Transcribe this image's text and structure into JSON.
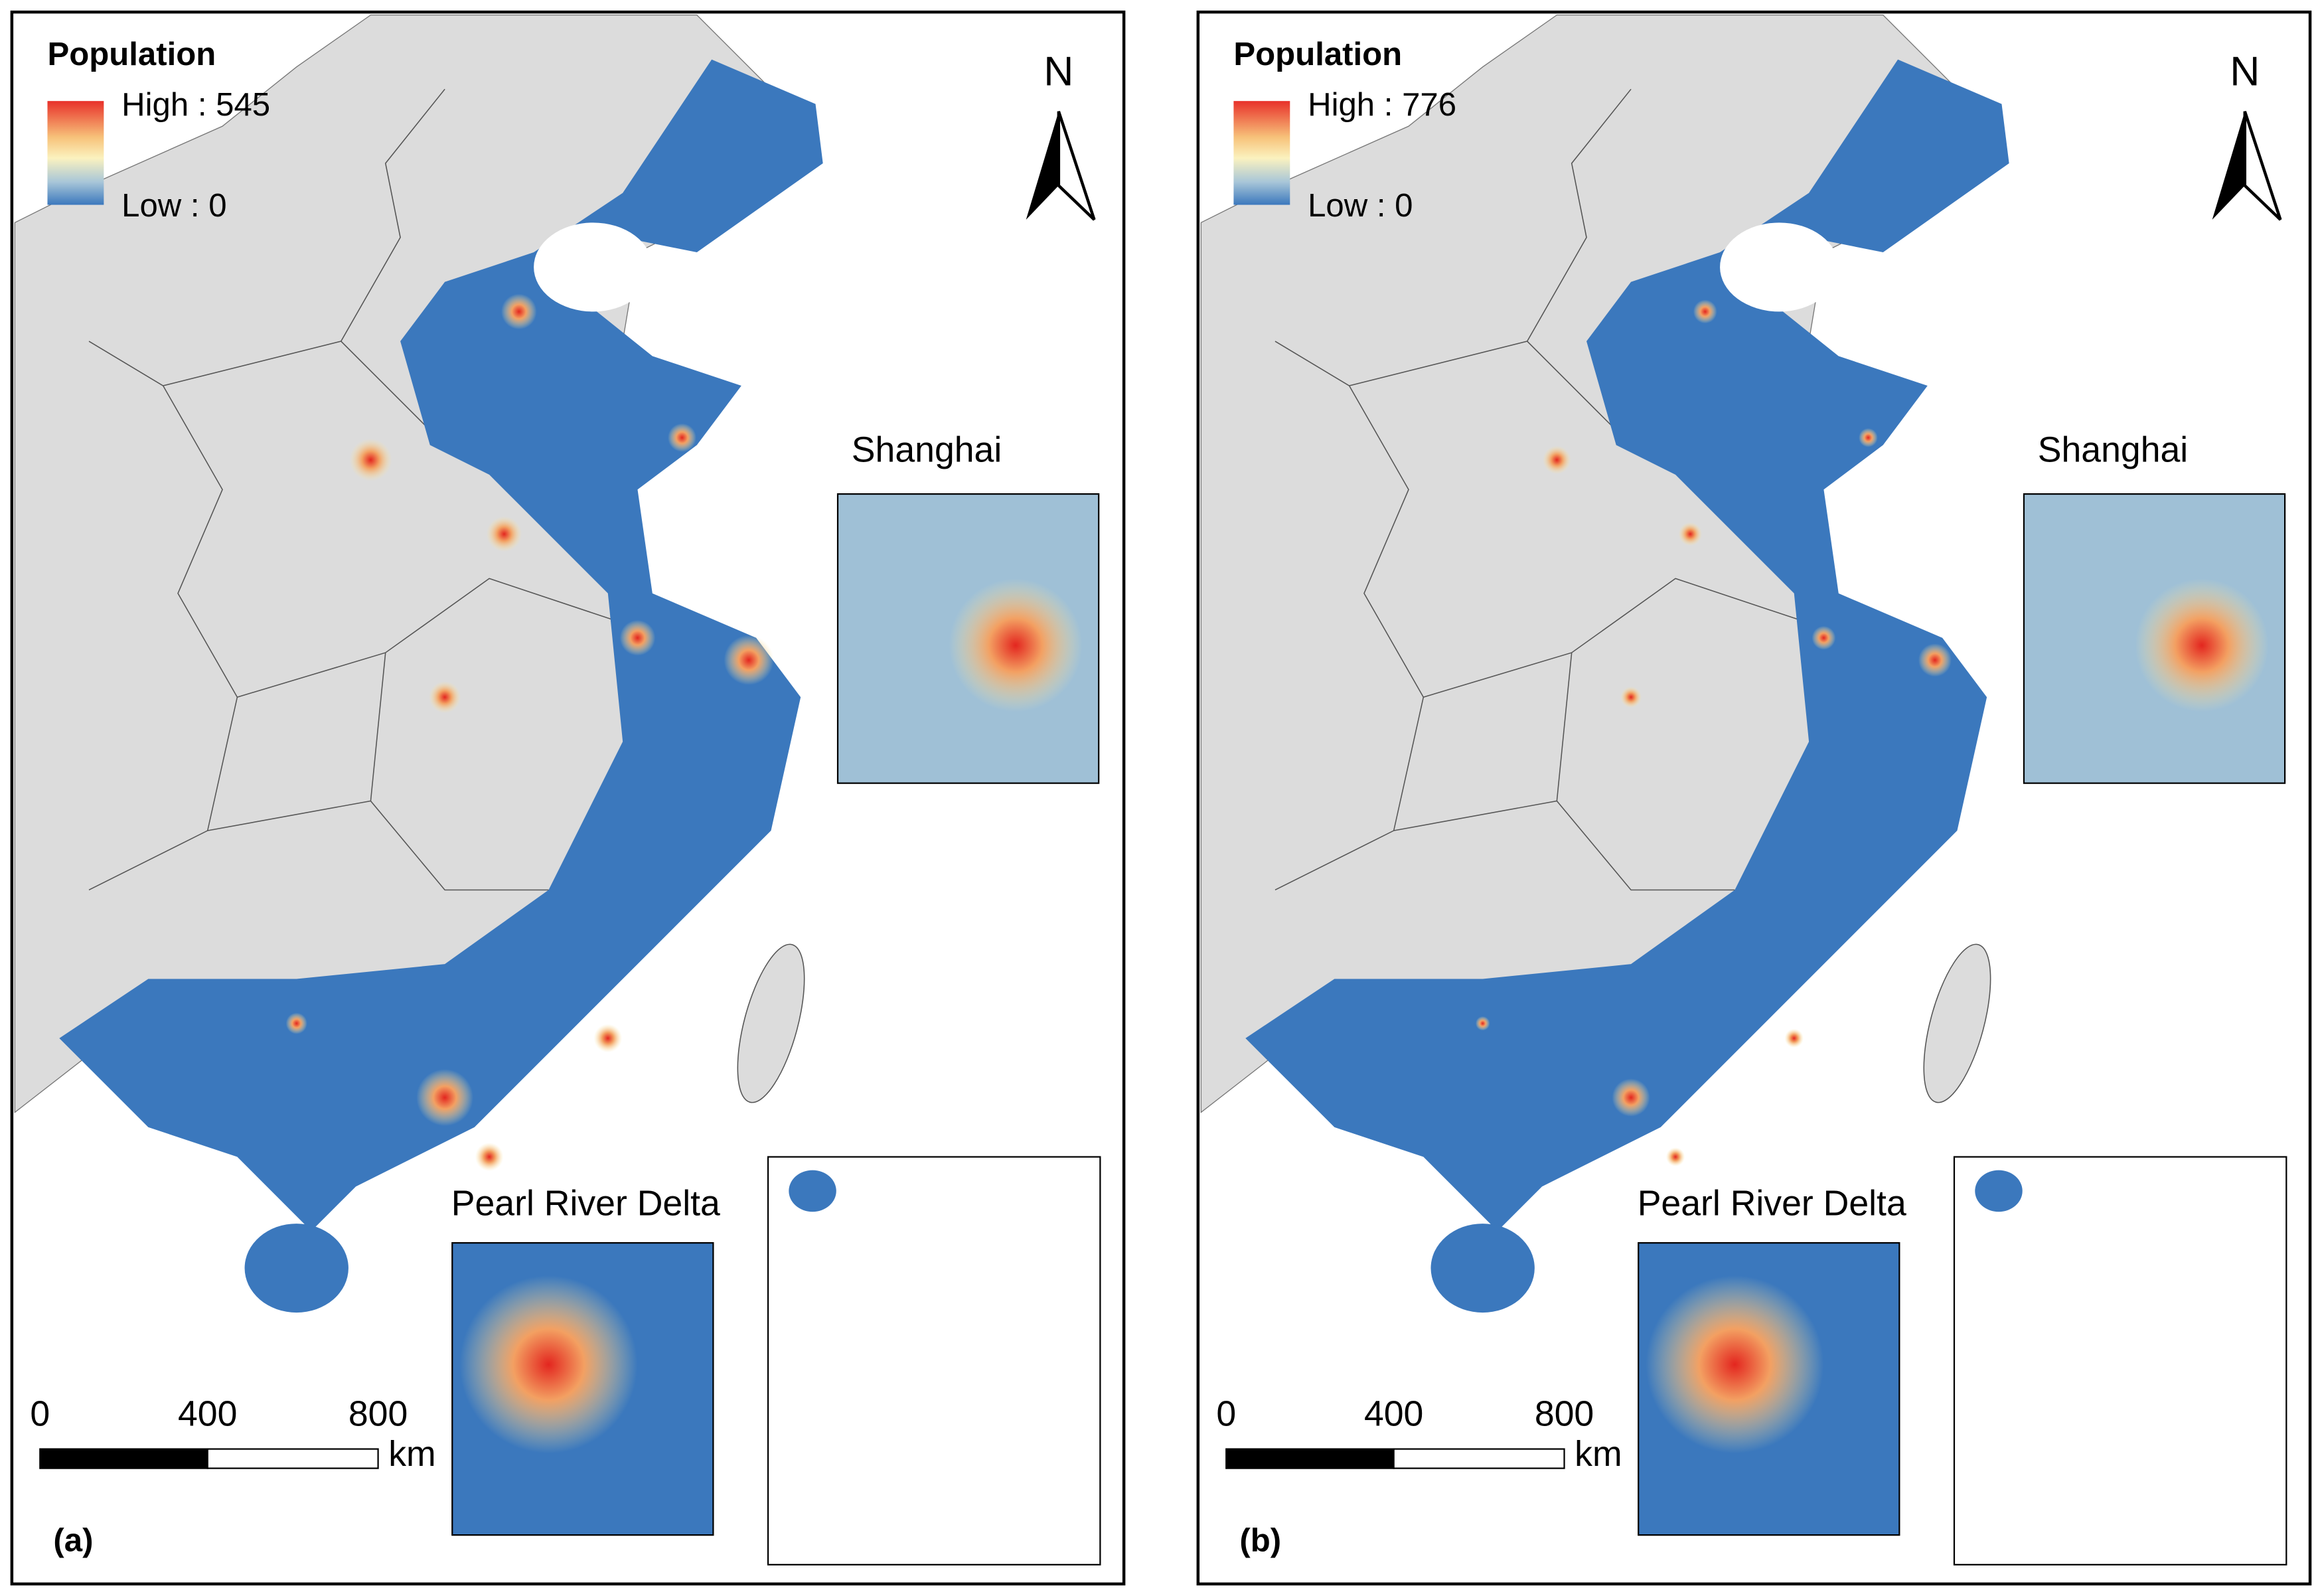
{
  "panels": [
    {
      "label": "(a)",
      "legend": {
        "title": "Population",
        "high": "High : 545",
        "low": "Low : 0"
      },
      "north": "N",
      "insets": {
        "shanghai": "Shanghai",
        "pearl_river_delta": "Pearl River Delta"
      },
      "scale": {
        "ticks": [
          "0",
          "400",
          "800"
        ],
        "unit": "km"
      }
    },
    {
      "label": "(b)",
      "legend": {
        "title": "Population",
        "high": "High : 776",
        "low": "Low : 0"
      },
      "north": "N",
      "insets": {
        "shanghai": "Shanghai",
        "pearl_river_delta": "Pearl River Delta"
      },
      "scale": {
        "ticks": [
          "0",
          "400",
          "800"
        ],
        "unit": "km"
      }
    }
  ]
}
